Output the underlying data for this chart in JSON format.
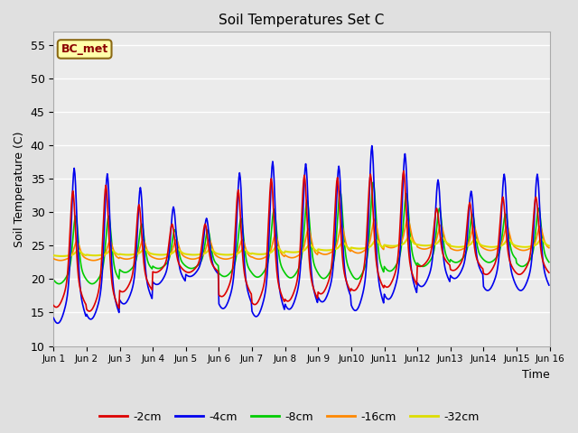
{
  "title": "Soil Temperatures Set C",
  "xlabel": "Time",
  "ylabel": "Soil Temperature (C)",
  "annotation": "BC_met",
  "ylim": [
    10,
    57
  ],
  "yticks": [
    10,
    15,
    20,
    25,
    30,
    35,
    40,
    45,
    50,
    55
  ],
  "series_labels": [
    "-2cm",
    "-4cm",
    "-8cm",
    "-16cm",
    "-32cm"
  ],
  "series_colors": [
    "#dd0000",
    "#0000ee",
    "#00cc00",
    "#ff8800",
    "#dddd00"
  ],
  "background_color": "#e0e0e0",
  "plot_bg_color": "#ebebeb",
  "xtick_labels": [
    "Jun 1",
    "Jun 2",
    "Jun 3",
    "Jun 4",
    "Jun 5",
    "Jun 6",
    "Jun 7",
    "Jun 8",
    "Jun 9",
    "Jun10",
    "Jun11",
    "Jun12",
    "Jun13",
    "Jun14",
    "Jun15",
    "Jun 16"
  ],
  "n_days": 15,
  "pts_per_day": 48,
  "mean_2cm": [
    23.0,
    23.0,
    23.5,
    24.0,
    24.0,
    24.0,
    24.0,
    24.5,
    25.0,
    25.5,
    26.0,
    25.5,
    25.5,
    25.5,
    25.5
  ],
  "mean_4cm": [
    23.0,
    23.0,
    23.5,
    24.0,
    24.0,
    24.0,
    24.0,
    24.5,
    25.0,
    25.5,
    26.0,
    25.5,
    25.5,
    25.5,
    25.5
  ],
  "mean_8cm": [
    23.5,
    23.5,
    24.0,
    24.0,
    24.0,
    24.0,
    24.5,
    25.0,
    25.5,
    26.0,
    26.0,
    25.5,
    25.5,
    25.5,
    25.5
  ],
  "mean_16cm": [
    24.0,
    24.0,
    24.2,
    24.2,
    24.2,
    24.2,
    24.5,
    25.0,
    25.5,
    26.0,
    26.5,
    26.0,
    25.8,
    25.8,
    25.8
  ],
  "mean_32cm": [
    23.8,
    23.9,
    24.0,
    24.0,
    24.0,
    24.0,
    24.2,
    24.5,
    24.8,
    25.1,
    25.5,
    25.5,
    25.3,
    25.3,
    25.3
  ],
  "amp_2cm": [
    12,
    13,
    9,
    5,
    5,
    11,
    13,
    13,
    12,
    12,
    12,
    6,
    7,
    8,
    8
  ],
  "amp_4cm": [
    16,
    15,
    12,
    8,
    6,
    14,
    16,
    15,
    14,
    17,
    15,
    11,
    9,
    12,
    12
  ],
  "amp_8cm": [
    7,
    7,
    5,
    4,
    4,
    6,
    7,
    8,
    9,
    10,
    8,
    6,
    5,
    5,
    6
  ],
  "amp_16cm": [
    2,
    2,
    2,
    2,
    2,
    2,
    2.5,
    3,
    3,
    3.5,
    3,
    2.5,
    2.5,
    2.5,
    2.5
  ],
  "amp_32cm": [
    0.6,
    0.6,
    0.6,
    0.6,
    0.6,
    0.6,
    0.8,
    0.8,
    0.8,
    0.9,
    0.9,
    0.8,
    0.8,
    0.8,
    0.8
  ],
  "peak_hour_2cm": 0.583,
  "peak_hour_4cm": 0.625,
  "peak_hour_8cm": 0.667,
  "peak_hour_16cm": 0.708,
  "peak_hour_32cm": 0.75,
  "sharpness": 3.5
}
